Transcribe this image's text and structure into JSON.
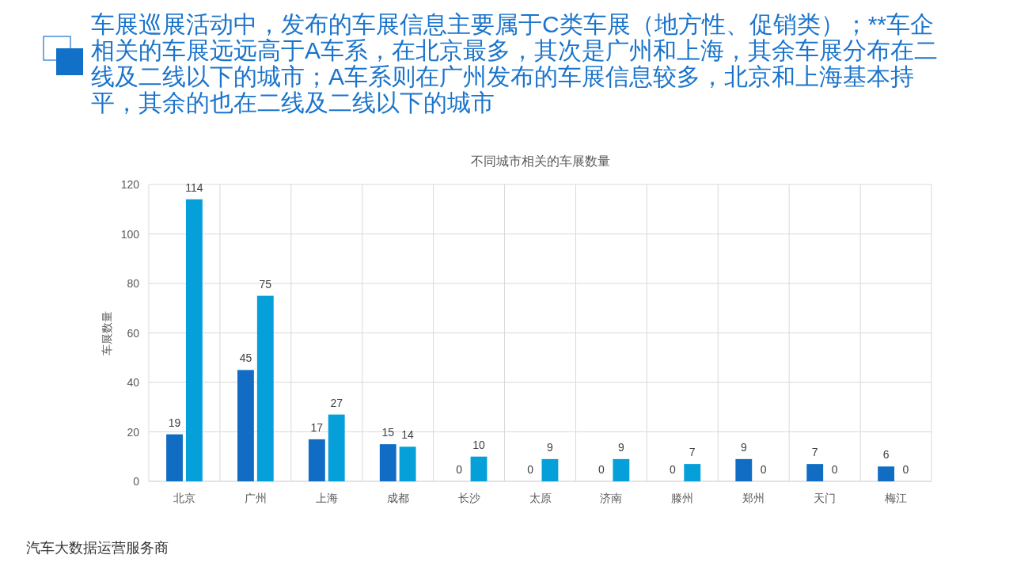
{
  "chart_data": {
    "type": "bar",
    "title": "车展巡展活动中，发布的车展信息主要属于C类车展（地方性、促销类）；**车企相关的车展远远高于A车系，在北京最多，其次是广州和上海，其余车展分布在二线及二线以下的城市；A车系则在广州发布的车展信息较多，北京和上海基本持平，其余的也在二线及二线以下的城市",
    "subtitle": "不同城市相关的车展数量",
    "ylabel": "车展数量",
    "annotations": [
      "汽车大数据运营服务商"
    ],
    "categories": [
      "北京",
      "广州",
      "上海",
      "成都",
      "长沙",
      "太原",
      "济南",
      "滕州",
      "郑州",
      "天门",
      "梅江"
    ],
    "series": [
      {
        "color": "#116dc3",
        "values": [
          19,
          45,
          17,
          15,
          0,
          0,
          0,
          0,
          9,
          7,
          6
        ]
      },
      {
        "color": "#059fd9",
        "values": [
          114,
          75,
          27,
          14,
          10,
          9,
          9,
          7,
          0,
          0,
          0
        ]
      }
    ],
    "ylim": [
      0,
      120
    ],
    "yticks": [
      0,
      20,
      40,
      60,
      80,
      100,
      120
    ],
    "grid": true,
    "data_labels": true
  }
}
